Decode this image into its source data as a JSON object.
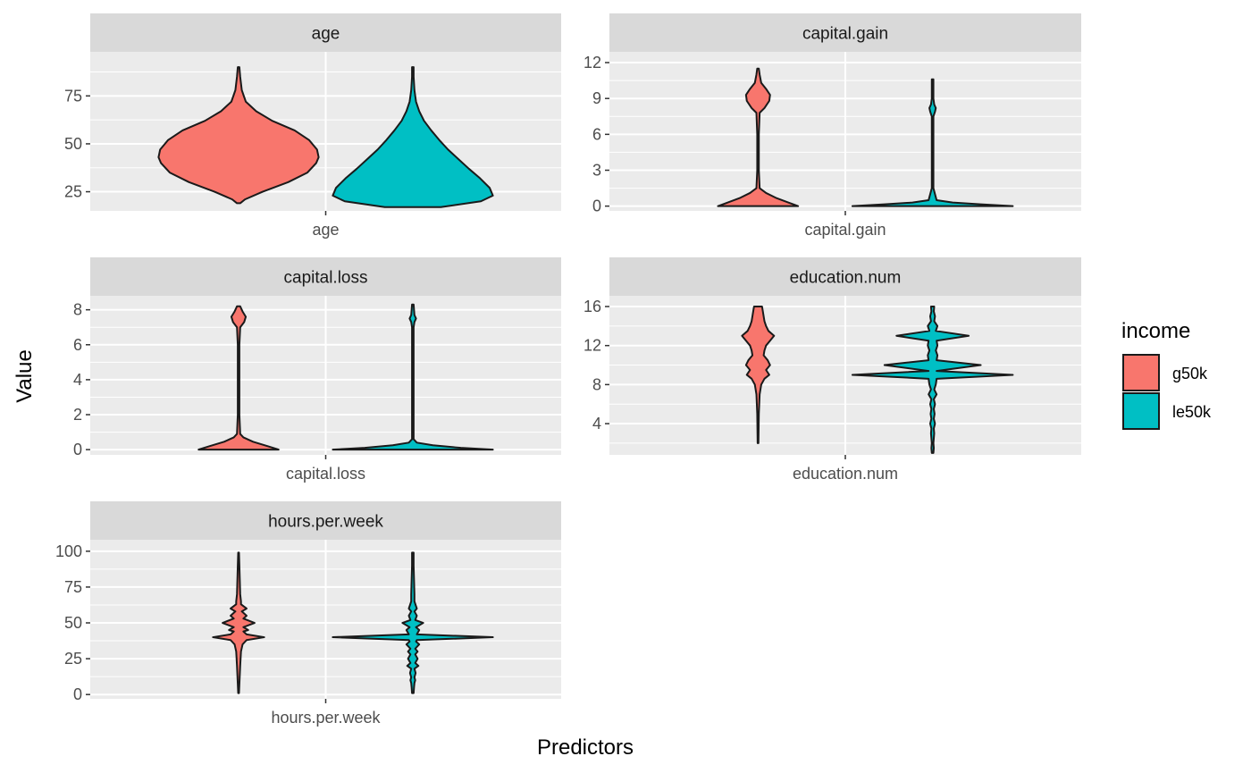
{
  "chart_data": {
    "type": "violin",
    "xlabel": "Predictors",
    "ylabel": "Value",
    "legend": {
      "title": "income",
      "position": "right",
      "entries": [
        {
          "label": "g50k",
          "color": "#f8766d"
        },
        {
          "label": "le50k",
          "color": "#00bfc4"
        }
      ]
    },
    "facets": [
      {
        "name": "age",
        "x_tick": "age",
        "ylim": [
          15,
          98
        ],
        "y_ticks": [
          25,
          50,
          75
        ],
        "y_tick_labels": [
          "25",
          "50",
          "75"
        ],
        "series": [
          {
            "name": "g50k",
            "ymin": 19,
            "ymax": 90,
            "profile": [
              [
                19,
                0.02
              ],
              [
                21,
                0.08
              ],
              [
                25,
                0.3
              ],
              [
                30,
                0.62
              ],
              [
                35,
                0.86
              ],
              [
                40,
                0.97
              ],
              [
                43,
                1.0
              ],
              [
                47,
                0.98
              ],
              [
                52,
                0.88
              ],
              [
                57,
                0.7
              ],
              [
                62,
                0.42
              ],
              [
                67,
                0.22
              ],
              [
                72,
                0.09
              ],
              [
                78,
                0.04
              ],
              [
                85,
                0.02
              ],
              [
                90,
                0.01
              ]
            ]
          },
          {
            "name": "le50k",
            "ymin": 17,
            "ymax": 90,
            "profile": [
              [
                17,
                0.35
              ],
              [
                20,
                0.85
              ],
              [
                23,
                1.0
              ],
              [
                27,
                0.96
              ],
              [
                32,
                0.84
              ],
              [
                37,
                0.7
              ],
              [
                42,
                0.57
              ],
              [
                47,
                0.44
              ],
              [
                52,
                0.33
              ],
              [
                57,
                0.23
              ],
              [
                62,
                0.14
              ],
              [
                67,
                0.08
              ],
              [
                72,
                0.04
              ],
              [
                78,
                0.02
              ],
              [
                85,
                0.01
              ],
              [
                90,
                0.01
              ]
            ]
          }
        ]
      },
      {
        "name": "capital.gain",
        "x_tick": "capital.gain",
        "ylim": [
          -0.4,
          12.9
        ],
        "y_ticks": [
          0,
          3,
          6,
          9,
          12
        ],
        "y_tick_labels": [
          "0",
          "3",
          "6",
          "9",
          "12"
        ],
        "series": [
          {
            "name": "g50k",
            "ymin": 0,
            "ymax": 11.5,
            "profile": [
              [
                0,
                0.5
              ],
              [
                0.3,
                0.38
              ],
              [
                0.7,
                0.22
              ],
              [
                1.1,
                0.1
              ],
              [
                1.5,
                0.02
              ],
              [
                3,
                0.01
              ],
              [
                6,
                0.01
              ],
              [
                7.8,
                0.02
              ],
              [
                8.2,
                0.08
              ],
              [
                8.8,
                0.14
              ],
              [
                9.3,
                0.15
              ],
              [
                9.8,
                0.1
              ],
              [
                10.3,
                0.04
              ],
              [
                11,
                0.02
              ],
              [
                11.5,
                0.01
              ]
            ]
          },
          {
            "name": "le50k",
            "ymin": 0,
            "ymax": 10.6,
            "profile": [
              [
                0,
                1.0
              ],
              [
                0.15,
                0.6
              ],
              [
                0.3,
                0.25
              ],
              [
                0.5,
                0.05
              ],
              [
                1.5,
                0.01
              ],
              [
                7.5,
                0.01
              ],
              [
                7.9,
                0.03
              ],
              [
                8.2,
                0.04
              ],
              [
                8.5,
                0.02
              ],
              [
                9,
                0.01
              ],
              [
                10.6,
                0.01
              ]
            ]
          }
        ]
      },
      {
        "name": "capital.loss",
        "x_tick": "capital.loss",
        "ylim": [
          -0.3,
          8.8
        ],
        "y_ticks": [
          0,
          2,
          4,
          6,
          8
        ],
        "y_tick_labels": [
          "0",
          "2",
          "4",
          "6",
          "8"
        ],
        "series": [
          {
            "name": "g50k",
            "ymin": 0,
            "ymax": 8.2,
            "profile": [
              [
                0,
                0.5
              ],
              [
                0.2,
                0.36
              ],
              [
                0.45,
                0.18
              ],
              [
                0.7,
                0.06
              ],
              [
                0.9,
                0.02
              ],
              [
                2,
                0.01
              ],
              [
                6,
                0.01
              ],
              [
                7,
                0.02
              ],
              [
                7.3,
                0.07
              ],
              [
                7.6,
                0.09
              ],
              [
                7.9,
                0.05
              ],
              [
                8.2,
                0.02
              ]
            ]
          },
          {
            "name": "le50k",
            "ymin": 0,
            "ymax": 8.3,
            "profile": [
              [
                0,
                1.0
              ],
              [
                0.1,
                0.6
              ],
              [
                0.25,
                0.25
              ],
              [
                0.4,
                0.05
              ],
              [
                0.6,
                0.01
              ],
              [
                7,
                0.01
              ],
              [
                7.3,
                0.02
              ],
              [
                7.5,
                0.04
              ],
              [
                7.7,
                0.02
              ],
              [
                8.3,
                0.01
              ]
            ]
          }
        ]
      },
      {
        "name": "education.num",
        "x_tick": "education.num",
        "ylim": [
          0.8,
          17.1
        ],
        "y_ticks": [
          4,
          8,
          12,
          16
        ],
        "y_tick_labels": [
          "4",
          "8",
          "12",
          "16"
        ],
        "series": [
          {
            "name": "g50k",
            "ymin": 2,
            "ymax": 16,
            "profile": [
              [
                2,
                0.005
              ],
              [
                5,
                0.01
              ],
              [
                7,
                0.02
              ],
              [
                8,
                0.04
              ],
              [
                8.6,
                0.08
              ],
              [
                9,
                0.14
              ],
              [
                9.5,
                0.1
              ],
              [
                10,
                0.15
              ],
              [
                10.5,
                0.12
              ],
              [
                11,
                0.07
              ],
              [
                11.5,
                0.08
              ],
              [
                12,
                0.1
              ],
              [
                12.5,
                0.15
              ],
              [
                13,
                0.2
              ],
              [
                13.5,
                0.13
              ],
              [
                14,
                0.1
              ],
              [
                14.5,
                0.08
              ],
              [
                15,
                0.07
              ],
              [
                15.5,
                0.06
              ],
              [
                16,
                0.05
              ]
            ]
          },
          {
            "name": "le50k",
            "ymin": 1,
            "ymax": 16,
            "profile": [
              [
                1,
                0.01
              ],
              [
                1.5,
                0.015
              ],
              [
                2,
                0.01
              ],
              [
                2.5,
                0.015
              ],
              [
                3,
                0.02
              ],
              [
                3.5,
                0.015
              ],
              [
                4,
                0.03
              ],
              [
                4.5,
                0.015
              ],
              [
                5,
                0.025
              ],
              [
                5.5,
                0.015
              ],
              [
                6,
                0.03
              ],
              [
                6.5,
                0.015
              ],
              [
                7,
                0.05
              ],
              [
                7.5,
                0.02
              ],
              [
                8,
                0.04
              ],
              [
                8.6,
                0.05
              ],
              [
                9,
                1.0
              ],
              [
                9.4,
                0.05
              ],
              [
                10,
                0.6
              ],
              [
                10.5,
                0.05
              ],
              [
                11,
                0.06
              ],
              [
                11.5,
                0.04
              ],
              [
                12,
                0.06
              ],
              [
                12.5,
                0.05
              ],
              [
                13,
                0.45
              ],
              [
                13.5,
                0.04
              ],
              [
                14,
                0.06
              ],
              [
                14.5,
                0.02
              ],
              [
                15,
                0.03
              ],
              [
                15.5,
                0.015
              ],
              [
                16,
                0.02
              ]
            ]
          }
        ]
      },
      {
        "name": "hours.per.week",
        "x_tick": "hours.per.week",
        "ylim": [
          -3,
          108
        ],
        "y_ticks": [
          0,
          25,
          50,
          75,
          100
        ],
        "y_tick_labels": [
          "0",
          "25",
          "50",
          "75",
          "100"
        ],
        "series": [
          {
            "name": "g50k",
            "ymin": 1,
            "ymax": 99,
            "profile": [
              [
                1,
                0.005
              ],
              [
                20,
                0.02
              ],
              [
                30,
                0.03
              ],
              [
                35,
                0.05
              ],
              [
                38,
                0.1
              ],
              [
                40,
                0.32
              ],
              [
                42,
                0.1
              ],
              [
                44,
                0.06
              ],
              [
                45,
                0.12
              ],
              [
                47,
                0.06
              ],
              [
                50,
                0.2
              ],
              [
                53,
                0.06
              ],
              [
                55,
                0.1
              ],
              [
                58,
                0.04
              ],
              [
                60,
                0.1
              ],
              [
                63,
                0.03
              ],
              [
                65,
                0.03
              ],
              [
                70,
                0.02
              ],
              [
                80,
                0.015
              ],
              [
                90,
                0.01
              ],
              [
                99,
                0.005
              ]
            ]
          },
          {
            "name": "le50k",
            "ymin": 1,
            "ymax": 99,
            "profile": [
              [
                1,
                0.01
              ],
              [
                5,
                0.015
              ],
              [
                8,
                0.02
              ],
              [
                10,
                0.03
              ],
              [
                12,
                0.02
              ],
              [
                15,
                0.035
              ],
              [
                18,
                0.02
              ],
              [
                20,
                0.07
              ],
              [
                22,
                0.03
              ],
              [
                25,
                0.06
              ],
              [
                28,
                0.03
              ],
              [
                30,
                0.06
              ],
              [
                32,
                0.03
              ],
              [
                35,
                0.08
              ],
              [
                37,
                0.04
              ],
              [
                38,
                0.05
              ],
              [
                40,
                1.0
              ],
              [
                42,
                0.05
              ],
              [
                45,
                0.08
              ],
              [
                47,
                0.04
              ],
              [
                50,
                0.13
              ],
              [
                52,
                0.03
              ],
              [
                55,
                0.05
              ],
              [
                58,
                0.02
              ],
              [
                60,
                0.05
              ],
              [
                65,
                0.02
              ],
              [
                70,
                0.02
              ],
              [
                80,
                0.015
              ],
              [
                90,
                0.01
              ],
              [
                99,
                0.01
              ]
            ]
          }
        ]
      }
    ]
  }
}
